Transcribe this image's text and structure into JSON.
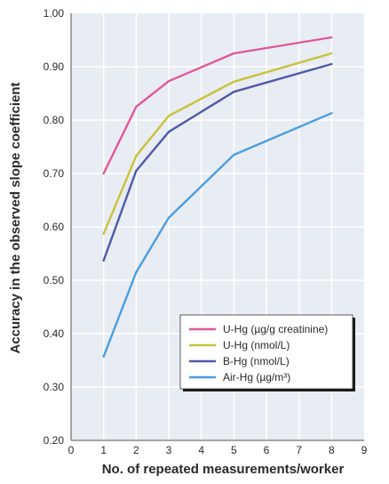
{
  "chart_data": {
    "type": "line",
    "title": "",
    "xlabel": "No. of repeated measurements/worker",
    "ylabel": "Accuracy in the observed slope coefficient",
    "xlim": [
      0,
      9
    ],
    "ylim": [
      0.2,
      1.0
    ],
    "xticks": [
      0,
      1,
      2,
      3,
      4,
      5,
      6,
      7,
      8,
      9
    ],
    "yticks": [
      0.2,
      0.3,
      0.4,
      0.5,
      0.6,
      0.7,
      0.8,
      0.9,
      1.0
    ],
    "ytick_labels": [
      "0.20",
      "0.30",
      "0.40",
      "0.50",
      "0.60",
      "0.70",
      "0.80",
      "0.90",
      "1.00"
    ],
    "grid": true,
    "legend_position": "bottom-right",
    "plot_background": "#e8ecf3",
    "grid_color": "#ffffff",
    "series": [
      {
        "name": "U-Hg (µg/g creatinine)",
        "color": "#e0589a",
        "x": [
          1,
          2,
          3,
          5,
          8
        ],
        "y": [
          0.7,
          0.825,
          0.873,
          0.925,
          0.955
        ]
      },
      {
        "name": "U-Hg (nmol/L)",
        "color": "#c9c23a",
        "x": [
          1,
          2,
          3,
          5,
          8
        ],
        "y": [
          0.587,
          0.733,
          0.808,
          0.872,
          0.925
        ]
      },
      {
        "name": "B-Hg (nmol/L)",
        "color": "#4f5aa8",
        "x": [
          1,
          2,
          3,
          5,
          8
        ],
        "y": [
          0.537,
          0.705,
          0.778,
          0.853,
          0.905
        ]
      },
      {
        "name": "Air-Hg (µg/m³)",
        "color": "#4a9ee0",
        "x": [
          1,
          2,
          3,
          5,
          8
        ],
        "y": [
          0.357,
          0.515,
          0.617,
          0.735,
          0.813
        ]
      }
    ]
  }
}
